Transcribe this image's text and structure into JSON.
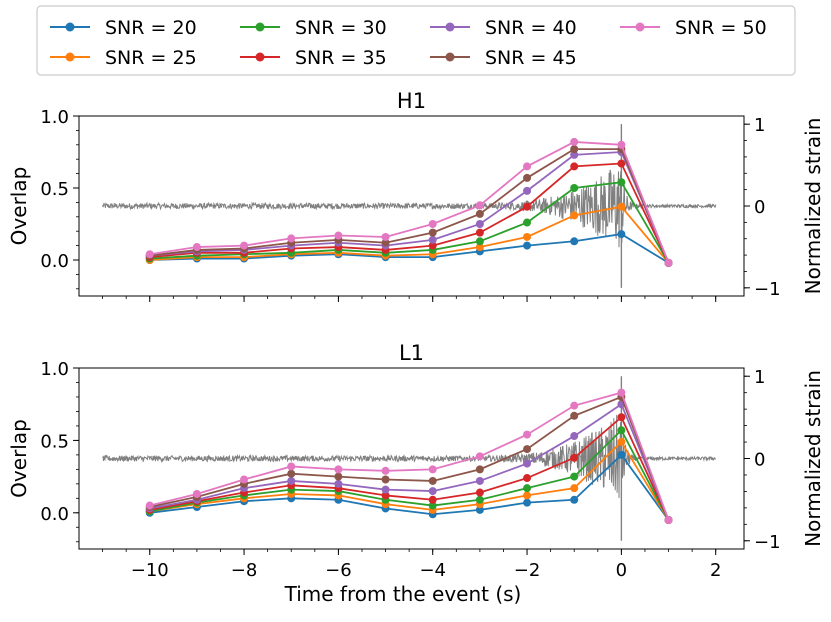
{
  "chart_data": {
    "type": "line",
    "legend": {
      "placement": "top",
      "entries": [
        {
          "label": "SNR = 20",
          "color": "#1f77b4"
        },
        {
          "label": "SNR = 25",
          "color": "#ff7f0e"
        },
        {
          "label": "SNR = 30",
          "color": "#2ca02c"
        },
        {
          "label": "SNR = 35",
          "color": "#d62728"
        },
        {
          "label": "SNR = 40",
          "color": "#9467bd"
        },
        {
          "label": "SNR = 45",
          "color": "#8c564b"
        },
        {
          "label": "SNR = 50",
          "color": "#e377c2"
        }
      ]
    },
    "xlabel": "Time from the event (s)",
    "xlim": [
      -11.5,
      2.6
    ],
    "xticks": [
      -10,
      -8,
      -6,
      -4,
      -2,
      0,
      2
    ],
    "xtick_labels": [
      "−10",
      "−8",
      "−6",
      "−4",
      "−2",
      "0",
      "2"
    ],
    "strain_color": "#808080",
    "x": [
      -10,
      -9,
      -8,
      -7,
      -6,
      -5,
      -4,
      -3,
      -2,
      -1,
      0,
      1
    ],
    "panels": [
      {
        "title": "H1",
        "ylabel": "Overlap",
        "ylabel_right": "Normalized strain",
        "ylim": [
          -0.25,
          1.0
        ],
        "yticks": [
          0.0,
          0.5,
          1.0
        ],
        "ytick_labels": [
          "0.0",
          "0.5",
          "1.0"
        ],
        "right_ylim": [
          -1.1,
          1.1
        ],
        "right_yticks": [
          -1,
          0,
          1
        ],
        "right_ytick_labels": [
          "−1",
          "0",
          "1"
        ],
        "series": [
          {
            "name": "SNR = 20",
            "values": [
              0.0,
              0.01,
              0.01,
              0.03,
              0.04,
              0.02,
              0.02,
              0.06,
              0.1,
              0.13,
              0.18,
              -0.02
            ]
          },
          {
            "name": "SNR = 25",
            "values": [
              0.0,
              0.02,
              0.02,
              0.04,
              0.05,
              0.03,
              0.04,
              0.09,
              0.16,
              0.31,
              0.37,
              -0.02
            ]
          },
          {
            "name": "SNR = 30",
            "values": [
              0.01,
              0.03,
              0.04,
              0.05,
              0.07,
              0.05,
              0.07,
              0.13,
              0.26,
              0.5,
              0.54,
              -0.02
            ]
          },
          {
            "name": "SNR = 35",
            "values": [
              0.02,
              0.05,
              0.05,
              0.08,
              0.09,
              0.07,
              0.1,
              0.19,
              0.37,
              0.65,
              0.67,
              -0.02
            ]
          },
          {
            "name": "SNR = 40",
            "values": [
              0.03,
              0.06,
              0.07,
              0.1,
              0.12,
              0.1,
              0.14,
              0.25,
              0.48,
              0.73,
              0.75,
              -0.02
            ]
          },
          {
            "name": "SNR = 45",
            "values": [
              0.03,
              0.07,
              0.08,
              0.12,
              0.14,
              0.12,
              0.19,
              0.32,
              0.57,
              0.77,
              0.77,
              -0.02
            ]
          },
          {
            "name": "SNR = 50",
            "values": [
              0.04,
              0.09,
              0.1,
              0.15,
              0.17,
              0.16,
              0.25,
              0.38,
              0.65,
              0.82,
              0.8,
              -0.02
            ]
          }
        ]
      },
      {
        "title": "L1",
        "ylabel": "Overlap",
        "ylabel_right": "Normalized strain",
        "ylim": [
          -0.25,
          1.0
        ],
        "yticks": [
          0.0,
          0.5,
          1.0
        ],
        "ytick_labels": [
          "0.0",
          "0.5",
          "1.0"
        ],
        "right_ylim": [
          -1.1,
          1.1
        ],
        "right_yticks": [
          -1,
          0,
          1
        ],
        "right_ytick_labels": [
          "−1",
          "0",
          "1"
        ],
        "series": [
          {
            "name": "SNR = 20",
            "values": [
              0.0,
              0.04,
              0.08,
              0.1,
              0.09,
              0.03,
              -0.01,
              0.02,
              0.07,
              0.09,
              0.4,
              -0.05
            ]
          },
          {
            "name": "SNR = 25",
            "values": [
              0.01,
              0.06,
              0.1,
              0.13,
              0.12,
              0.06,
              0.02,
              0.06,
              0.12,
              0.17,
              0.49,
              -0.05
            ]
          },
          {
            "name": "SNR = 30",
            "values": [
              0.01,
              0.07,
              0.12,
              0.16,
              0.15,
              0.09,
              0.05,
              0.09,
              0.17,
              0.25,
              0.57,
              -0.05
            ]
          },
          {
            "name": "SNR = 35",
            "values": [
              0.02,
              0.08,
              0.14,
              0.19,
              0.17,
              0.12,
              0.09,
              0.14,
              0.24,
              0.38,
              0.66,
              -0.05
            ]
          },
          {
            "name": "SNR = 40",
            "values": [
              0.03,
              0.09,
              0.17,
              0.22,
              0.2,
              0.16,
              0.15,
              0.22,
              0.34,
              0.53,
              0.75,
              -0.05
            ]
          },
          {
            "name": "SNR = 45",
            "values": [
              0.04,
              0.11,
              0.2,
              0.27,
              0.25,
              0.23,
              0.22,
              0.3,
              0.44,
              0.67,
              0.8,
              -0.05
            ]
          },
          {
            "name": "SNR = 50",
            "values": [
              0.05,
              0.13,
              0.23,
              0.32,
              0.3,
              0.29,
              0.3,
              0.39,
              0.54,
              0.74,
              0.83,
              -0.05
            ]
          }
        ]
      }
    ]
  }
}
